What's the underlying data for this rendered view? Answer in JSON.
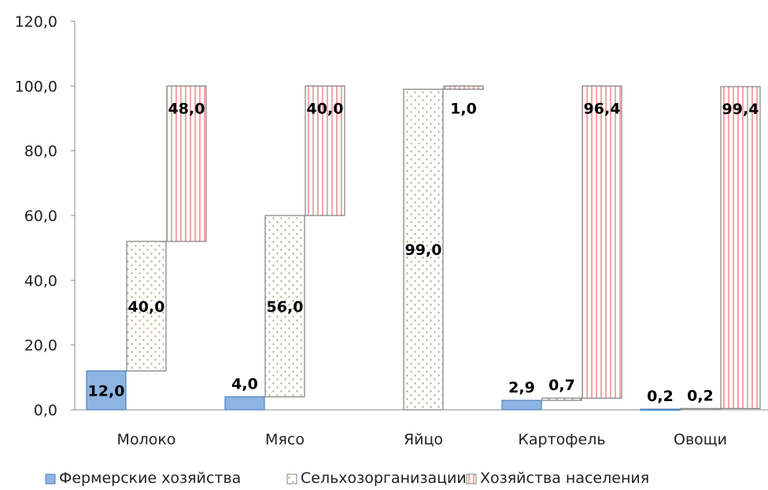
{
  "chart_data": {
    "type": "bar",
    "variant": "waterfall-stacked",
    "categories": [
      "Молоко",
      "Мясо",
      "Яйцо",
      "Картофель",
      "Овощи"
    ],
    "series": [
      {
        "name": "Фермерские хозяйства",
        "values": [
          12.0,
          4.0,
          0.0,
          2.9,
          0.2
        ],
        "labels": [
          "12,0",
          "4,0",
          "",
          "2,9",
          "0,2"
        ],
        "color": "#8EB4E3",
        "pattern": "solid"
      },
      {
        "name": "Сельхозорганизации",
        "values": [
          40.0,
          56.0,
          99.0,
          0.7,
          0.2
        ],
        "labels": [
          "40,0",
          "56,0",
          "99,0",
          "0,7",
          "0,2"
        ],
        "color": "#C4BD97",
        "pattern": "dots"
      },
      {
        "name": "Хозяйства населения",
        "values": [
          48.0,
          40.0,
          1.0,
          96.4,
          99.4
        ],
        "labels": [
          "48,0",
          "40,0",
          "1,0",
          "96,4",
          "99,4"
        ],
        "color": "#F2A7A7",
        "pattern": "vertical-stripes"
      }
    ],
    "yticks": [
      "0,0",
      "20,0",
      "40,0",
      "60,0",
      "80,0",
      "100,0",
      "120,0"
    ],
    "ylim": [
      0,
      120
    ],
    "grid": false,
    "legend_position": "bottom"
  }
}
